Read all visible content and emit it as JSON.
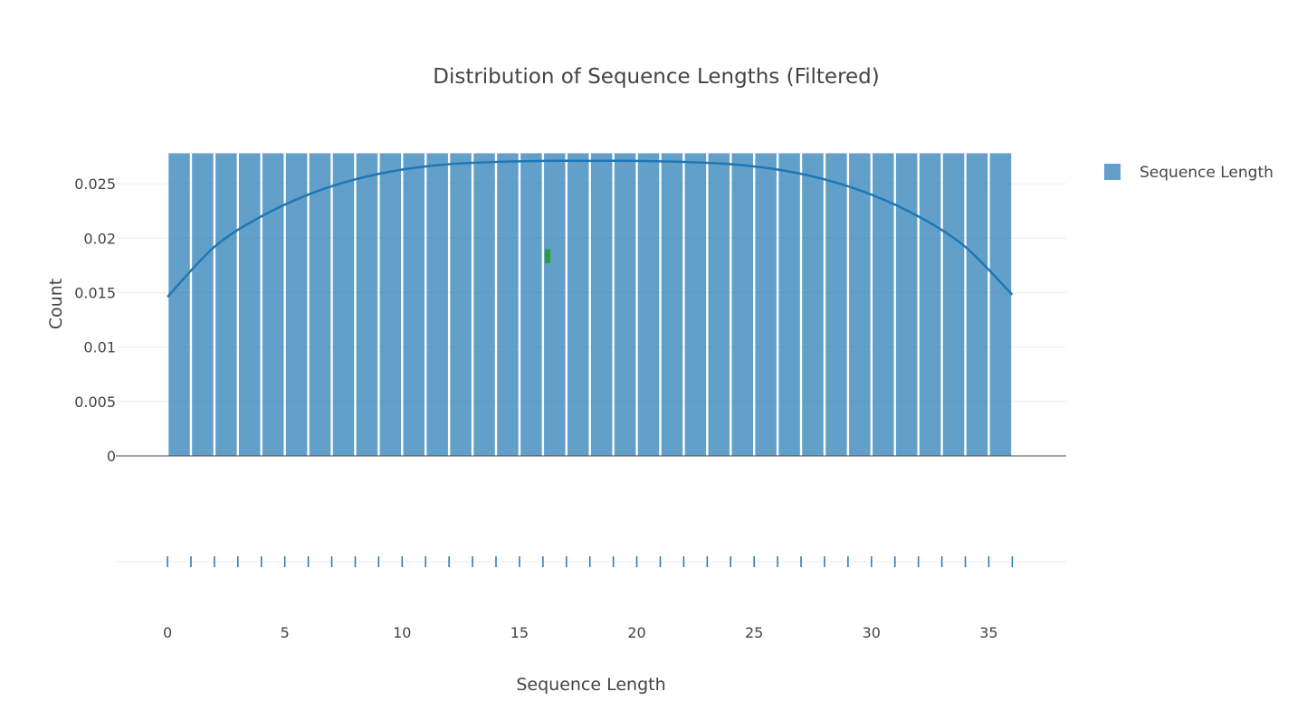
{
  "chart_data": {
    "type": "bar",
    "title": "Distribution of Sequence Lengths (Filtered)",
    "xlabel": "Sequence Length",
    "ylabel": "Count",
    "legend_position": "top-right",
    "grid": true,
    "bar_color": "#1f77b4",
    "kde_color": "#1f77b4",
    "rug_color": "#1f77b4",
    "marker_color": "#2ca02c",
    "x_tick_labels": [
      "0",
      "5",
      "10",
      "15",
      "20",
      "25",
      "30",
      "35"
    ],
    "y_tick_labels": [
      "0",
      "0.005",
      "0.01",
      "0.015",
      "0.02",
      "0.025"
    ],
    "x_ticks": [
      0,
      5,
      10,
      15,
      20,
      25,
      30,
      35
    ],
    "y_ticks": [
      0,
      0.005,
      0.01,
      0.015,
      0.02,
      0.025
    ],
    "xlim": [
      -2.2,
      38.3
    ],
    "ylim": [
      0,
      0.0285
    ],
    "series": [
      {
        "name": "Sequence Length",
        "type": "histogram",
        "bin_width": 1,
        "bin_starts": [
          0,
          1,
          2,
          3,
          4,
          5,
          6,
          7,
          8,
          9,
          10,
          11,
          12,
          13,
          14,
          15,
          16,
          17,
          18,
          19,
          20,
          21,
          22,
          23,
          24,
          25,
          26,
          27,
          28,
          29,
          30,
          31,
          32,
          33,
          34,
          35
        ],
        "values": [
          0.0278,
          0.0278,
          0.0278,
          0.0278,
          0.0278,
          0.0278,
          0.0278,
          0.0278,
          0.0278,
          0.0278,
          0.0278,
          0.0278,
          0.0278,
          0.0278,
          0.0278,
          0.0278,
          0.0278,
          0.0278,
          0.0278,
          0.0278,
          0.0278,
          0.0278,
          0.0278,
          0.0278,
          0.0278,
          0.0278,
          0.0278,
          0.0278,
          0.0278,
          0.0278,
          0.0278,
          0.0278,
          0.0278,
          0.0278,
          0.0278,
          0.0278
        ]
      },
      {
        "type": "kde",
        "x": [
          0,
          2,
          4,
          6,
          8,
          10,
          12,
          14,
          16,
          18,
          20,
          22,
          24,
          26,
          28,
          30,
          32,
          34,
          36
        ],
        "y": [
          0.0146,
          0.0192,
          0.022,
          0.024,
          0.0254,
          0.0263,
          0.0268,
          0.027,
          0.0271,
          0.0271,
          0.0271,
          0.027,
          0.0268,
          0.0263,
          0.0254,
          0.024,
          0.022,
          0.0192,
          0.0148
        ]
      },
      {
        "type": "rug",
        "x": [
          0,
          1,
          2,
          3,
          4,
          5,
          6,
          7,
          8,
          9,
          10,
          11,
          12,
          13,
          14,
          15,
          16,
          17,
          18,
          19,
          20,
          21,
          22,
          23,
          24,
          25,
          26,
          27,
          28,
          29,
          30,
          31,
          32,
          33,
          34,
          35,
          36
        ]
      }
    ],
    "marker": {
      "x": 16.2,
      "y_low": 0.0177,
      "y_high": 0.019
    }
  }
}
